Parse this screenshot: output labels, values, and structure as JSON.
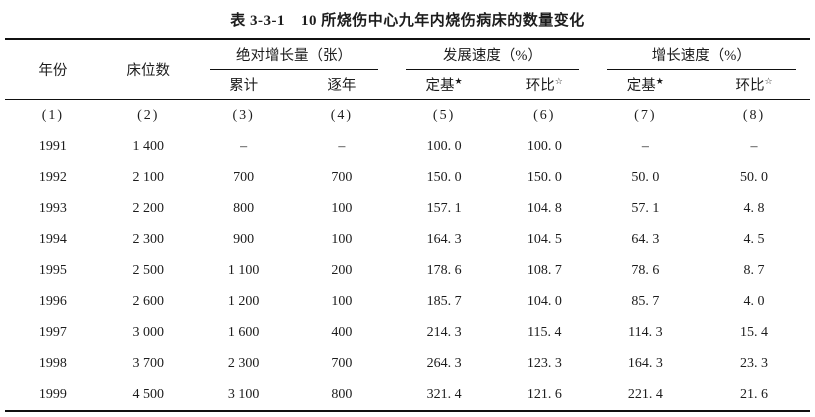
{
  "title": {
    "label": "表 3-3-1",
    "text": "10 所烧伤中心九年内烧伤病床的数量变化"
  },
  "colors": {
    "background": "#ffffff",
    "text": "#1c1c1c",
    "rule": "#111111"
  },
  "table": {
    "header": {
      "year": "年份",
      "beds": "床位数",
      "groups": [
        {
          "label": "绝对增长量（张）",
          "sub": [
            {
              "label": "累计",
              "star": ""
            },
            {
              "label": "逐年",
              "star": ""
            }
          ]
        },
        {
          "label": "发展速度（%）",
          "sub": [
            {
              "label": "定基",
              "star": "★"
            },
            {
              "label": "环比",
              "star": "☆"
            }
          ]
        },
        {
          "label": "增长速度（%）",
          "sub": [
            {
              "label": "定基",
              "star": "★"
            },
            {
              "label": "环比",
              "star": "☆"
            }
          ]
        }
      ],
      "col_numbers": [
        "(1)",
        "(2)",
        "(3)",
        "(4)",
        "(5)",
        "(6)",
        "(7)",
        "(8)"
      ]
    },
    "rows": [
      [
        "1991",
        "1 400",
        "–",
        "–",
        "100. 0",
        "100. 0",
        "–",
        "–"
      ],
      [
        "1992",
        "2 100",
        "700",
        "700",
        "150. 0",
        "150. 0",
        "50. 0",
        "50. 0"
      ],
      [
        "1993",
        "2 200",
        "800",
        "100",
        "157. 1",
        "104. 8",
        "57. 1",
        "4. 8"
      ],
      [
        "1994",
        "2 300",
        "900",
        "100",
        "164. 3",
        "104. 5",
        "64. 3",
        "4. 5"
      ],
      [
        "1995",
        "2 500",
        "1 100",
        "200",
        "178. 6",
        "108. 7",
        "78. 6",
        "8. 7"
      ],
      [
        "1996",
        "2 600",
        "1 200",
        "100",
        "185. 7",
        "104. 0",
        "85. 7",
        "4. 0"
      ],
      [
        "1997",
        "3 000",
        "1 600",
        "400",
        "214. 3",
        "115. 4",
        "114. 3",
        "15. 4"
      ],
      [
        "1998",
        "3 700",
        "2 300",
        "700",
        "264. 3",
        "123. 3",
        "164. 3",
        "23. 3"
      ],
      [
        "1999",
        "4 500",
        "3 100",
        "800",
        "321. 4",
        "121. 6",
        "221. 4",
        "21. 6"
      ]
    ]
  }
}
